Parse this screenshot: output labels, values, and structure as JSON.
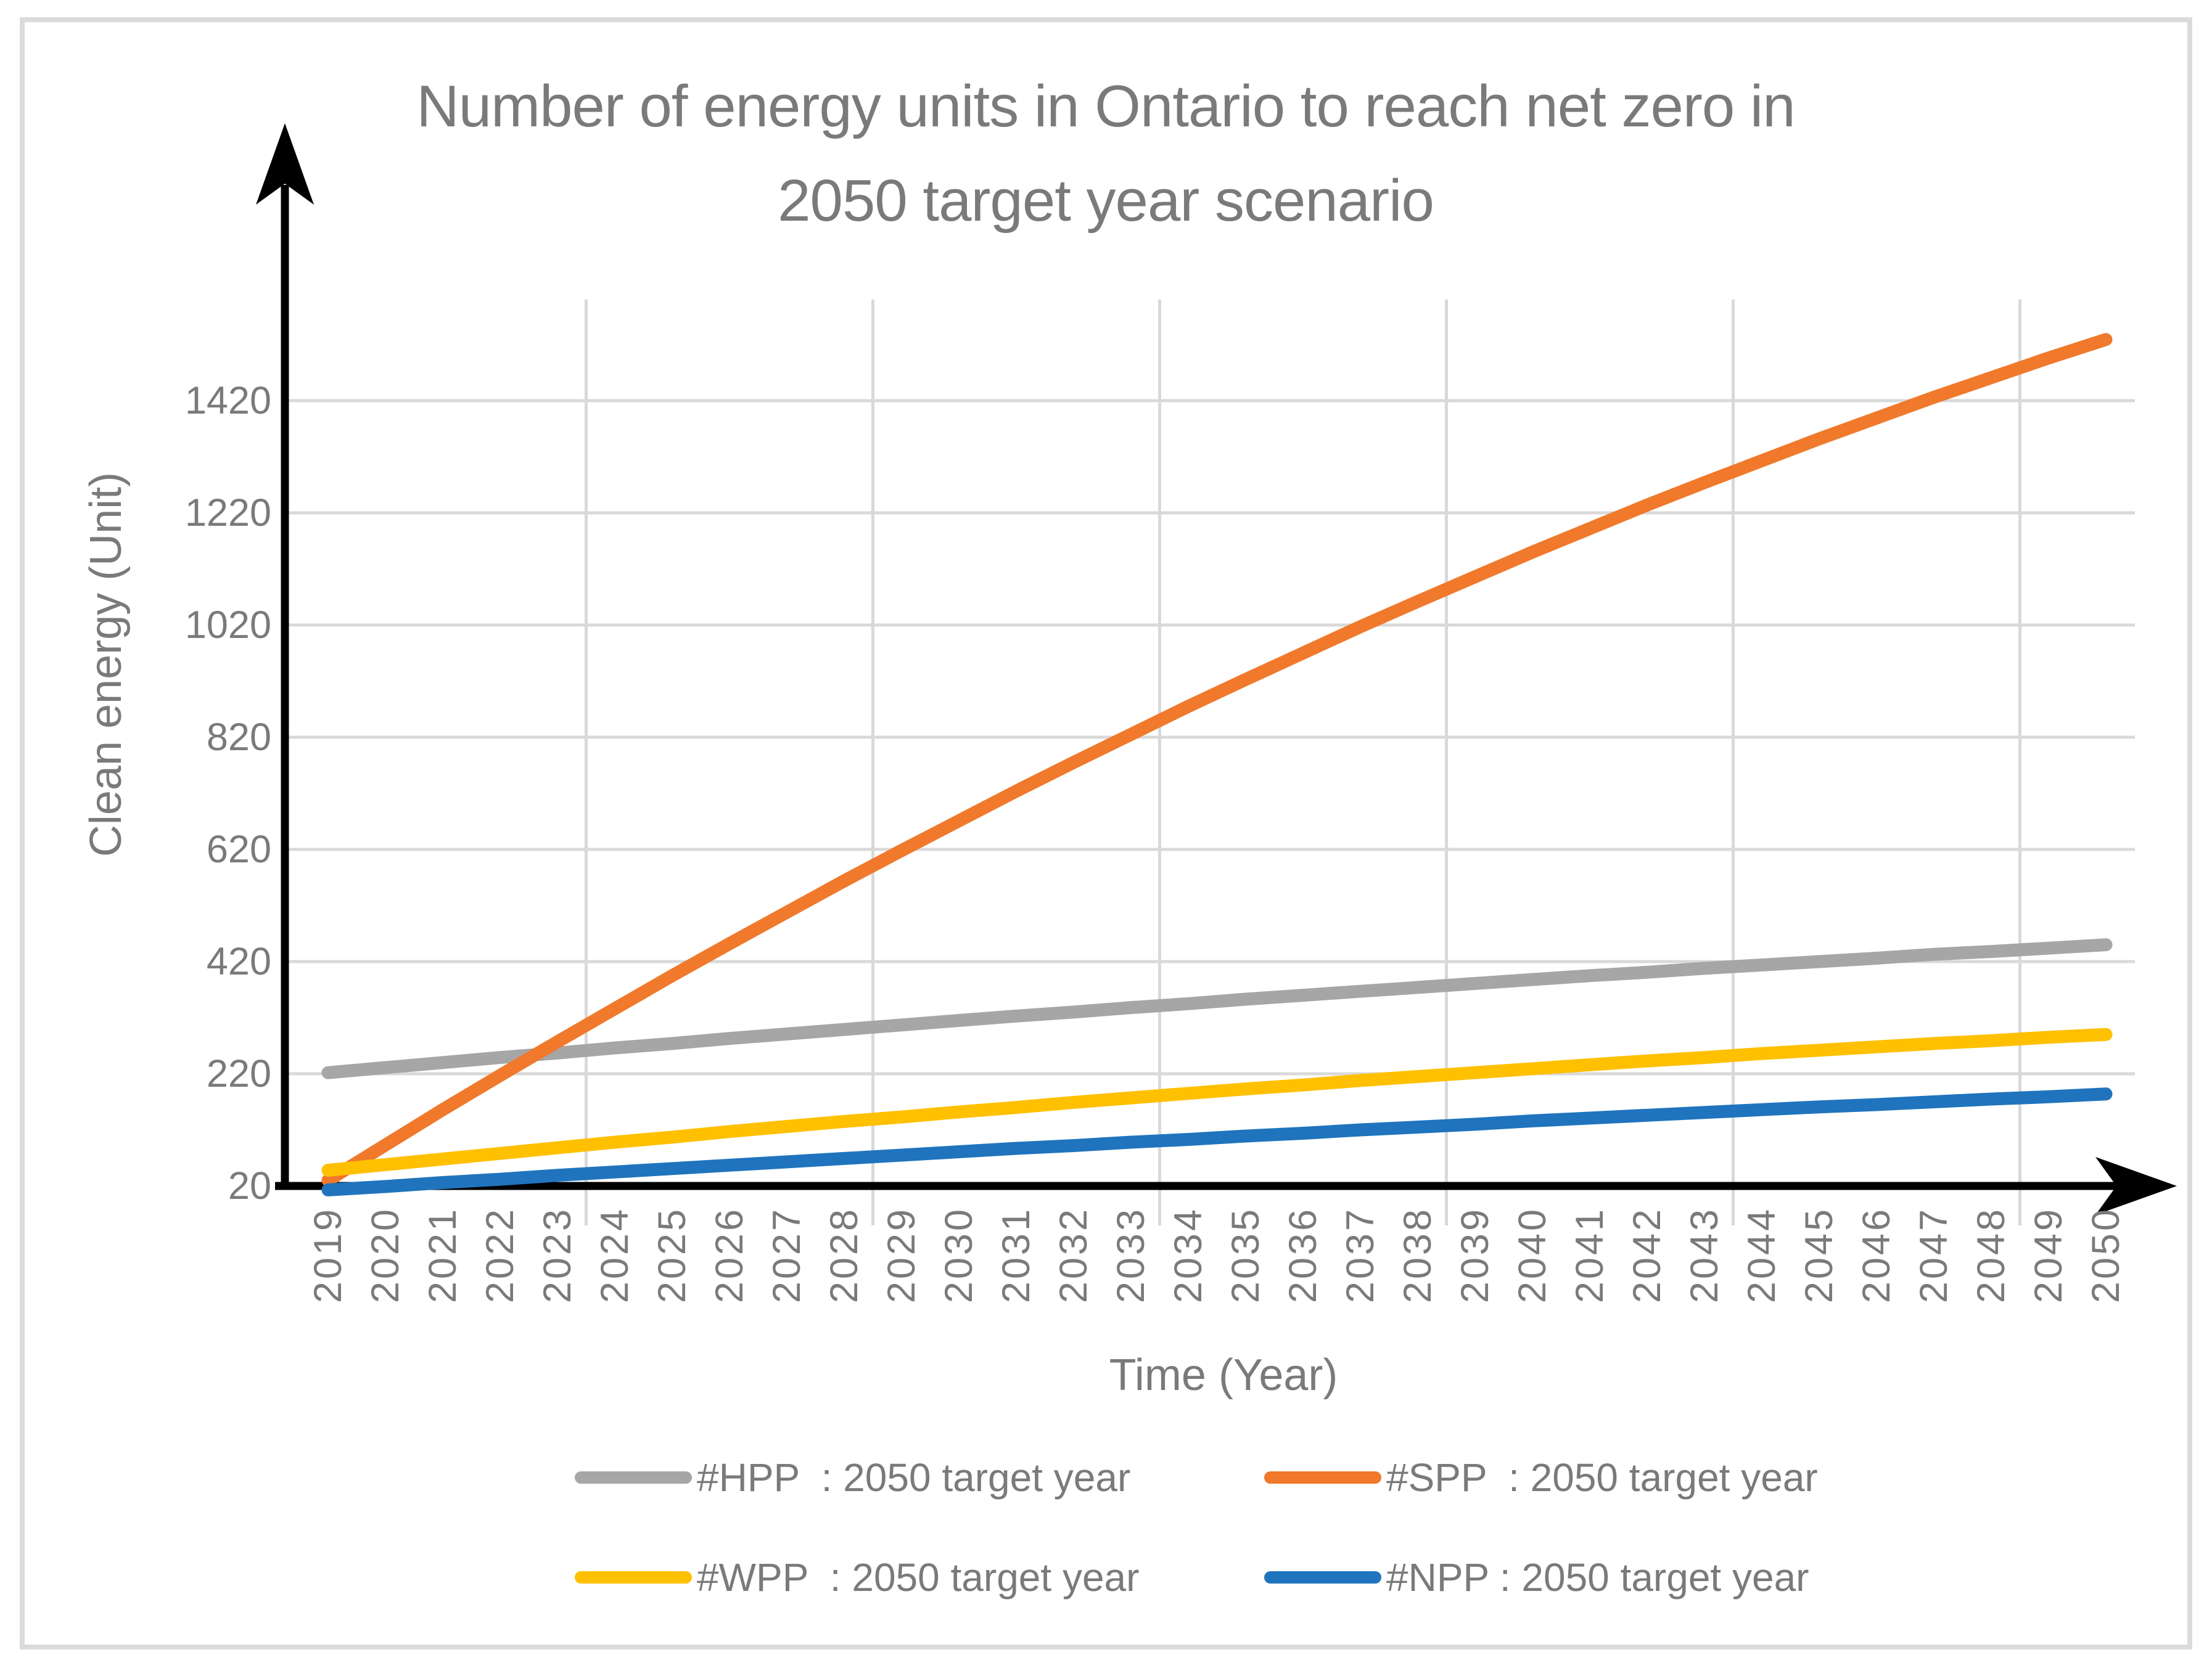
{
  "chart_data": {
    "type": "line",
    "title": "Number of energy units in Ontario to reach net zero in 2050 target year scenario",
    "title_line1": "Number of energy units in Ontario to reach net zero in",
    "title_line2": "2050 target year scenario",
    "xlabel": "Time (Year)",
    "ylabel": "Clean energy (Unit)",
    "x_years": [
      2019,
      2020,
      2021,
      2022,
      2023,
      2024,
      2025,
      2026,
      2027,
      2028,
      2029,
      2030,
      2031,
      2032,
      2033,
      2034,
      2035,
      2036,
      2037,
      2038,
      2039,
      2040,
      2041,
      2042,
      2043,
      2044,
      2045,
      2046,
      2047,
      2048,
      2049,
      2050
    ],
    "y_ticks": [
      20,
      220,
      420,
      620,
      820,
      1020,
      1220,
      1420
    ],
    "ylim": [
      -50,
      1600
    ],
    "grid": {
      "horizontal": true,
      "vertical": true,
      "vertical_every_n_years": 5
    },
    "legend_position": "bottom",
    "legend_rows": [
      [
        "HPP",
        "SPP"
      ],
      [
        "WPP",
        "NPP"
      ]
    ],
    "series": {
      "HPP": {
        "label": "#HPP  : 2050 target year",
        "color": "#a6a6a6",
        "values": [
          222,
          231,
          240,
          249,
          257,
          266,
          274,
          283,
          291,
          299,
          307,
          315,
          323,
          330,
          338,
          345,
          353,
          360,
          367,
          374,
          381,
          388,
          395,
          401,
          408,
          414,
          420,
          426,
          433,
          438,
          444,
          450
        ]
      },
      "SPP": {
        "label": "#SPP  : 2050 target year",
        "color": "#f0792b",
        "values": [
          30,
          93,
          156,
          217,
          277,
          336,
          395,
          452,
          508,
          564,
          618,
          671,
          724,
          775,
          825,
          875,
          923,
          970,
          1017,
          1062,
          1106,
          1150,
          1192,
          1234,
          1274,
          1313,
          1352,
          1389,
          1426,
          1461,
          1496,
          1529
        ]
      },
      "WPP": {
        "label": "#WPP  : 2050 target year",
        "color": "#ffc000",
        "values": [
          48,
          58,
          68,
          78,
          88,
          98,
          107,
          117,
          126,
          135,
          143,
          152,
          160,
          169,
          177,
          185,
          193,
          200,
          208,
          215,
          222,
          229,
          236,
          243,
          249,
          256,
          262,
          268,
          274,
          279,
          285,
          290
        ]
      },
      "NPP": {
        "label": "#NPP : 2050 target year",
        "color": "#1f74bd",
        "values": [
          13,
          19,
          26,
          32,
          39,
          45,
          51,
          57,
          63,
          69,
          75,
          81,
          87,
          92,
          98,
          103,
          109,
          114,
          120,
          125,
          130,
          136,
          141,
          146,
          151,
          156,
          161,
          165,
          170,
          175,
          179,
          184
        ]
      }
    }
  }
}
